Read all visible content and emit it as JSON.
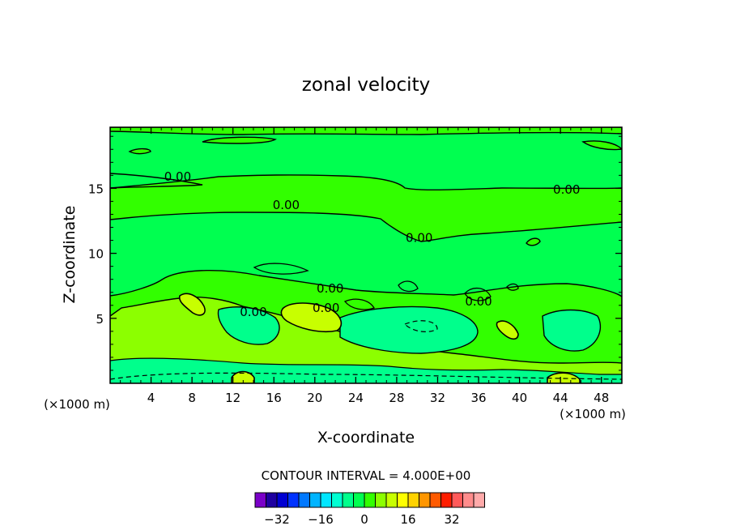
{
  "chart_data": {
    "type": "heatmap",
    "title": "zonal velocity",
    "xlabel": "X-coordinate",
    "ylabel": "Z-coordinate",
    "x_unit_left": "(×1000 m)",
    "x_unit_right": "(×1000 m)",
    "xlim": [
      0,
      50
    ],
    "ylim": [
      0,
      19.7
    ],
    "x_ticks": [
      4,
      8,
      12,
      16,
      20,
      24,
      28,
      32,
      36,
      40,
      44,
      48
    ],
    "x_tick_labels": [
      "4",
      "8",
      "12",
      "16",
      "20",
      "24",
      "28",
      "32",
      "36",
      "40",
      "44",
      "48"
    ],
    "y_ticks": [
      5,
      10,
      15
    ],
    "y_tick_labels": [
      "5",
      "10",
      "15"
    ],
    "contour_interval_text": "CONTOUR INTERVAL = 4.000E+00",
    "contour_labels": [
      {
        "text": "0.00",
        "x": 6.6,
        "z": 15.9
      },
      {
        "text": "0.00",
        "x": 17.2,
        "z": 13.7
      },
      {
        "text": "0.00",
        "x": 44.6,
        "z": 14.9
      },
      {
        "text": "0.00",
        "x": 30.2,
        "z": 11.2
      },
      {
        "text": "0.00",
        "x": 21.5,
        "z": 7.3
      },
      {
        "text": "0.00",
        "x": 21.1,
        "z": 5.8
      },
      {
        "text": "0.00",
        "x": 36.0,
        "z": 6.3
      },
      {
        "text": "0.00",
        "x": 14.0,
        "z": 5.5
      }
    ],
    "colorbar": {
      "colors": [
        "#7a00c8",
        "#1e00a0",
        "#0000d2",
        "#0032ff",
        "#0078ff",
        "#00b4ff",
        "#00e6ff",
        "#00ffd2",
        "#00ff8c",
        "#00ff50",
        "#32ff00",
        "#8cff00",
        "#c8ff00",
        "#ffff00",
        "#ffd200",
        "#ff9600",
        "#ff5a00",
        "#ff1e00",
        "#ff5a5a",
        "#ff8c8c",
        "#ffaaaa"
      ],
      "tick_values": [
        -32,
        -16,
        0,
        16,
        32
      ],
      "tick_labels": [
        "−32",
        "−16",
        "0",
        "16",
        "32"
      ]
    }
  }
}
